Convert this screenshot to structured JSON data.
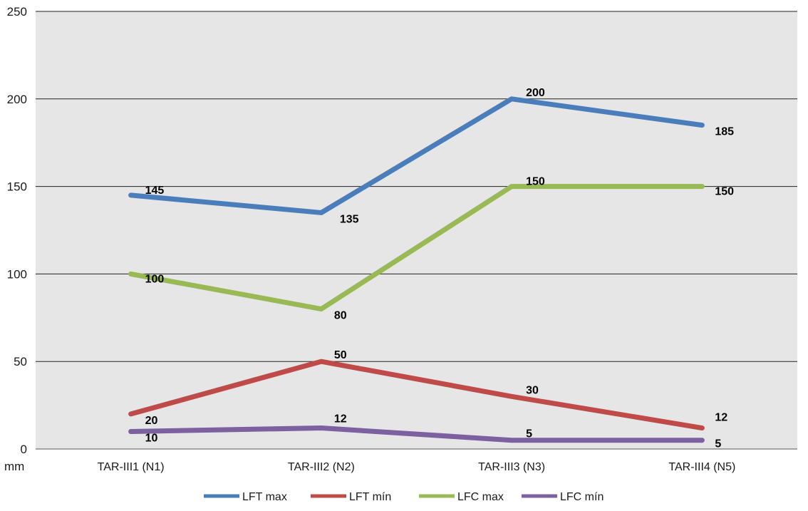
{
  "chart_data": {
    "type": "line",
    "title": "",
    "xlabel": "",
    "ylabel": "",
    "unit_label": "mm",
    "categories": [
      "TAR-III1 (N1)",
      "TAR-III2 (N2)",
      "TAR-III3 (N3)",
      "TAR-III4 (N5)"
    ],
    "ylim": [
      0,
      250
    ],
    "yticks": [
      0,
      50,
      100,
      150,
      200,
      250
    ],
    "grid": true,
    "legend_position": "bottom",
    "series": [
      {
        "name": "LFT max",
        "color": "#4a7ebb",
        "values": [
          145,
          135,
          200,
          185
        ]
      },
      {
        "name": "LFT mín",
        "color": "#be4b48",
        "values": [
          20,
          50,
          30,
          12
        ]
      },
      {
        "name": "LFC max",
        "color": "#98b954",
        "values": [
          100,
          80,
          150,
          150
        ]
      },
      {
        "name": "LFC mín",
        "color": "#7d60a0",
        "values": [
          10,
          12,
          5,
          5
        ]
      }
    ]
  }
}
